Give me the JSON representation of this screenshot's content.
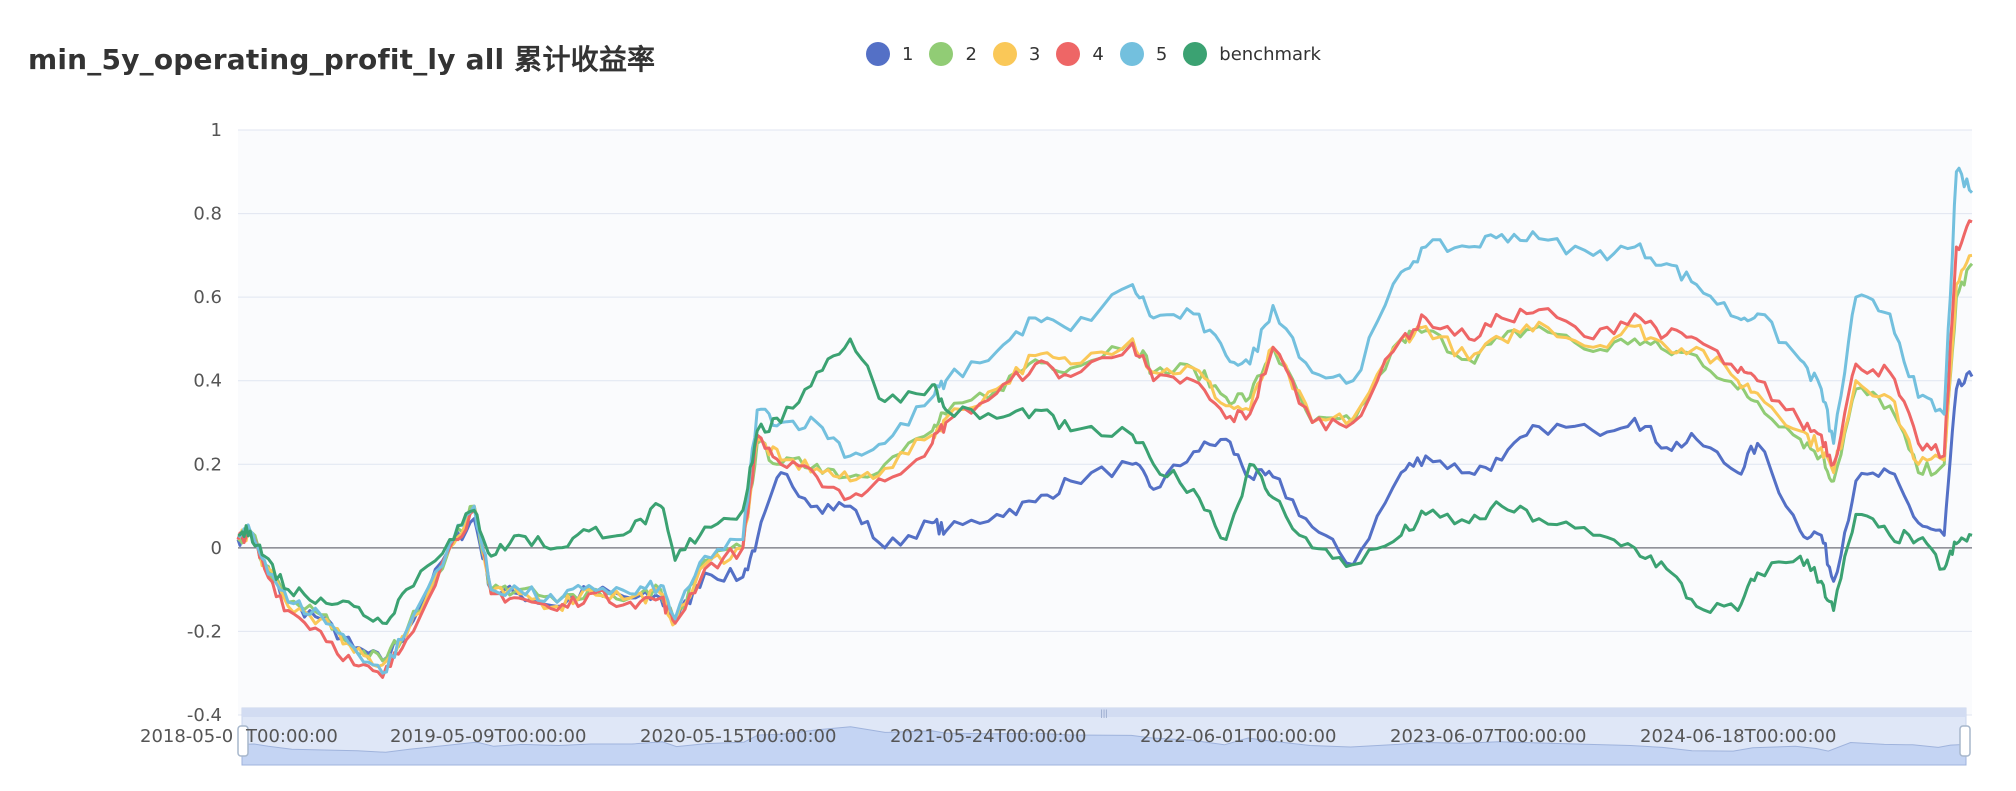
{
  "chart_data": {
    "type": "line",
    "title": "min_5y_operating_profit_ly all 累计收益率",
    "ylim": [
      -0.4,
      1
    ],
    "yticks": [
      "1",
      "0.8",
      "0.6",
      "0.4",
      "0.2",
      "0",
      "-0.2",
      "-0.4"
    ],
    "ytick_values": [
      1,
      0.8,
      0.6,
      0.4,
      0.2,
      0,
      -0.2,
      -0.4
    ],
    "x_start": "2018-05-02",
    "x_end": "2025-04-30",
    "xtick_labels": [
      "2018-05-0",
      "T00:00:00",
      "2019-05-09T00:00:00",
      "2020-05-15T00:00:00",
      "2021-05-24T00:00:00",
      "2022-06-01T00:00:00",
      "2023-06-07T00:00:00",
      "2024-06-18T00:00:00"
    ],
    "legend_position": "top-center",
    "grid": true,
    "series": [
      {
        "name": "1",
        "color": "#5470c6",
        "x": [
          "2018-05-02",
          "2018-05-20",
          "2018-06-10",
          "2018-07-15",
          "2018-09-01",
          "2018-10-20",
          "2018-12-01",
          "2019-01-05",
          "2019-03-10",
          "2019-04-15",
          "2019-05-10",
          "2019-06-20",
          "2019-08-15",
          "2019-10-01",
          "2019-12-01",
          "2020-01-15",
          "2020-02-05",
          "2020-03-20",
          "2020-05-15",
          "2020-06-05",
          "2020-07-10",
          "2020-09-01",
          "2020-10-20",
          "2020-12-10",
          "2021-02-18",
          "2021-03-10",
          "2021-05-24",
          "2021-07-20",
          "2021-09-10",
          "2021-12-10",
          "2022-01-10",
          "2022-03-10",
          "2022-04-27",
          "2022-06-01",
          "2022-07-05",
          "2022-09-01",
          "2022-10-31",
          "2023-01-10",
          "2023-02-15",
          "2023-04-20",
          "2023-06-07",
          "2023-08-01",
          "2023-10-20",
          "2023-12-20",
          "2024-02-05",
          "2024-03-20",
          "2024-05-20",
          "2024-06-18",
          "2024-08-20",
          "2024-09-20",
          "2024-10-08",
          "2024-11-10",
          "2024-12-30",
          "2025-02-10",
          "2025-03-20",
          "2025-04-07",
          "2025-04-30"
        ],
        "y": [
          0.02,
          0.04,
          -0.04,
          -0.13,
          -0.17,
          -0.24,
          -0.27,
          -0.2,
          0.0,
          0.07,
          -0.1,
          -0.11,
          -0.14,
          -0.1,
          -0.12,
          -0.12,
          -0.18,
          -0.06,
          -0.07,
          0.02,
          0.18,
          0.1,
          0.1,
          0.0,
          0.06,
          0.04,
          0.08,
          0.11,
          0.16,
          0.2,
          0.14,
          0.23,
          0.26,
          0.17,
          0.17,
          0.05,
          -0.04,
          0.18,
          0.22,
          0.18,
          0.21,
          0.29,
          0.28,
          0.31,
          0.24,
          0.26,
          0.18,
          0.25,
          0.04,
          0.03,
          -0.08,
          0.16,
          0.18,
          0.06,
          0.03,
          0.38,
          0.41
        ]
      },
      {
        "name": "2",
        "color": "#91cc75",
        "x": [
          "2018-05-02",
          "2018-05-20",
          "2018-06-10",
          "2018-07-15",
          "2018-09-01",
          "2018-10-20",
          "2018-12-01",
          "2019-01-05",
          "2019-03-10",
          "2019-04-15",
          "2019-05-10",
          "2019-06-20",
          "2019-08-15",
          "2019-10-01",
          "2019-12-01",
          "2020-01-15",
          "2020-02-05",
          "2020-03-20",
          "2020-05-15",
          "2020-06-05",
          "2020-07-10",
          "2020-09-01",
          "2020-10-20",
          "2020-12-10",
          "2021-02-18",
          "2021-03-10",
          "2021-05-24",
          "2021-07-20",
          "2021-09-10",
          "2021-12-10",
          "2022-01-10",
          "2022-03-10",
          "2022-04-27",
          "2022-06-01",
          "2022-07-05",
          "2022-09-01",
          "2022-10-31",
          "2023-01-10",
          "2023-02-15",
          "2023-04-20",
          "2023-06-07",
          "2023-08-01",
          "2023-10-20",
          "2023-12-20",
          "2024-02-05",
          "2024-03-20",
          "2024-05-20",
          "2024-06-18",
          "2024-08-20",
          "2024-09-20",
          "2024-10-08",
          "2024-11-10",
          "2024-12-30",
          "2025-02-10",
          "2025-03-20",
          "2025-04-07",
          "2025-04-30"
        ],
        "y": [
          0.02,
          0.04,
          -0.04,
          -0.13,
          -0.16,
          -0.24,
          -0.27,
          -0.2,
          0.0,
          0.1,
          -0.1,
          -0.1,
          -0.13,
          -0.1,
          -0.12,
          -0.1,
          -0.18,
          -0.03,
          0.0,
          0.25,
          0.2,
          0.2,
          0.17,
          0.2,
          0.28,
          0.32,
          0.38,
          0.45,
          0.43,
          0.5,
          0.42,
          0.43,
          0.36,
          0.36,
          0.48,
          0.3,
          0.3,
          0.5,
          0.52,
          0.45,
          0.5,
          0.53,
          0.47,
          0.5,
          0.47,
          0.46,
          0.38,
          0.35,
          0.26,
          0.22,
          0.16,
          0.38,
          0.34,
          0.18,
          0.2,
          0.6,
          0.68
        ]
      },
      {
        "name": "3",
        "color": "#fac858",
        "x": [
          "2018-05-02",
          "2018-05-20",
          "2018-06-10",
          "2018-07-15",
          "2018-09-01",
          "2018-10-20",
          "2018-12-01",
          "2019-01-05",
          "2019-03-10",
          "2019-04-15",
          "2019-05-10",
          "2019-06-20",
          "2019-08-15",
          "2019-10-01",
          "2019-12-01",
          "2020-01-15",
          "2020-02-05",
          "2020-03-20",
          "2020-05-15",
          "2020-06-05",
          "2020-07-10",
          "2020-09-01",
          "2020-10-20",
          "2020-12-10",
          "2021-02-18",
          "2021-03-10",
          "2021-05-24",
          "2021-07-20",
          "2021-09-10",
          "2021-12-10",
          "2022-01-10",
          "2022-03-10",
          "2022-04-27",
          "2022-06-01",
          "2022-07-05",
          "2022-09-01",
          "2022-10-31",
          "2023-01-10",
          "2023-02-15",
          "2023-04-20",
          "2023-06-07",
          "2023-08-01",
          "2023-10-20",
          "2023-12-20",
          "2024-02-05",
          "2024-03-20",
          "2024-05-20",
          "2024-06-18",
          "2024-08-20",
          "2024-09-20",
          "2024-10-08",
          "2024-11-10",
          "2024-12-30",
          "2025-02-10",
          "2025-03-20",
          "2025-04-07",
          "2025-04-30"
        ],
        "y": [
          0.02,
          0.04,
          -0.04,
          -0.14,
          -0.17,
          -0.25,
          -0.28,
          -0.21,
          0.0,
          0.1,
          -0.11,
          -0.11,
          -0.14,
          -0.1,
          -0.12,
          -0.11,
          -0.18,
          -0.04,
          0.0,
          0.26,
          0.21,
          0.19,
          0.16,
          0.19,
          0.27,
          0.31,
          0.38,
          0.46,
          0.44,
          0.5,
          0.42,
          0.43,
          0.34,
          0.33,
          0.48,
          0.3,
          0.31,
          0.5,
          0.53,
          0.45,
          0.5,
          0.54,
          0.48,
          0.53,
          0.48,
          0.48,
          0.4,
          0.37,
          0.28,
          0.24,
          0.18,
          0.4,
          0.36,
          0.2,
          0.21,
          0.63,
          0.7
        ]
      },
      {
        "name": "4",
        "color": "#ee6666",
        "x": [
          "2018-05-02",
          "2018-05-20",
          "2018-06-10",
          "2018-07-15",
          "2018-09-01",
          "2018-10-20",
          "2018-12-01",
          "2019-01-05",
          "2019-03-10",
          "2019-04-15",
          "2019-05-10",
          "2019-06-20",
          "2019-08-15",
          "2019-10-01",
          "2019-12-01",
          "2020-01-15",
          "2020-02-05",
          "2020-03-20",
          "2020-05-15",
          "2020-06-05",
          "2020-07-10",
          "2020-09-01",
          "2020-10-20",
          "2020-12-10",
          "2021-02-18",
          "2021-03-10",
          "2021-05-24",
          "2021-07-20",
          "2021-09-10",
          "2021-12-10",
          "2022-01-10",
          "2022-03-10",
          "2022-04-27",
          "2022-06-01",
          "2022-07-05",
          "2022-09-01",
          "2022-10-31",
          "2023-01-10",
          "2023-02-15",
          "2023-04-20",
          "2023-06-07",
          "2023-08-01",
          "2023-10-20",
          "2023-12-20",
          "2024-02-05",
          "2024-03-20",
          "2024-05-20",
          "2024-06-18",
          "2024-08-20",
          "2024-09-20",
          "2024-10-08",
          "2024-11-10",
          "2024-12-30",
          "2025-02-10",
          "2025-03-20",
          "2025-04-07",
          "2025-04-30"
        ],
        "y": [
          0.02,
          0.04,
          -0.05,
          -0.15,
          -0.2,
          -0.28,
          -0.31,
          -0.22,
          0.0,
          0.09,
          -0.11,
          -0.12,
          -0.15,
          -0.11,
          -0.13,
          -0.12,
          -0.18,
          -0.05,
          0.0,
          0.27,
          0.2,
          0.17,
          0.12,
          0.16,
          0.25,
          0.3,
          0.37,
          0.44,
          0.41,
          0.49,
          0.4,
          0.4,
          0.31,
          0.32,
          0.48,
          0.3,
          0.3,
          0.5,
          0.55,
          0.5,
          0.55,
          0.57,
          0.5,
          0.56,
          0.51,
          0.5,
          0.42,
          0.4,
          0.3,
          0.27,
          0.2,
          0.44,
          0.42,
          0.25,
          0.22,
          0.72,
          0.78
        ]
      },
      {
        "name": "5",
        "color": "#73c0de",
        "x": [
          "2018-05-02",
          "2018-05-20",
          "2018-06-10",
          "2018-07-15",
          "2018-09-01",
          "2018-10-20",
          "2018-12-01",
          "2019-01-05",
          "2019-03-10",
          "2019-04-15",
          "2019-05-10",
          "2019-06-20",
          "2019-08-15",
          "2019-10-01",
          "2019-12-01",
          "2020-01-15",
          "2020-02-05",
          "2020-03-20",
          "2020-05-15",
          "2020-06-05",
          "2020-07-10",
          "2020-09-01",
          "2020-10-20",
          "2020-12-10",
          "2021-02-18",
          "2021-03-10",
          "2021-05-24",
          "2021-07-20",
          "2021-09-10",
          "2021-12-10",
          "2022-01-10",
          "2022-03-10",
          "2022-04-27",
          "2022-06-01",
          "2022-07-05",
          "2022-09-01",
          "2022-10-31",
          "2023-01-10",
          "2023-02-15",
          "2023-04-20",
          "2023-06-07",
          "2023-08-01",
          "2023-10-20",
          "2023-12-20",
          "2024-02-05",
          "2024-03-20",
          "2024-05-20",
          "2024-06-18",
          "2024-08-20",
          "2024-09-20",
          "2024-10-08",
          "2024-11-10",
          "2024-12-30",
          "2025-02-10",
          "2025-03-20",
          "2025-04-07",
          "2025-04-30"
        ],
        "y": [
          0.03,
          0.04,
          -0.03,
          -0.13,
          -0.16,
          -0.24,
          -0.3,
          -0.2,
          0.01,
          0.1,
          -0.1,
          -0.1,
          -0.13,
          -0.09,
          -0.11,
          -0.09,
          -0.17,
          -0.02,
          0.02,
          0.33,
          0.3,
          0.3,
          0.22,
          0.25,
          0.36,
          0.4,
          0.47,
          0.55,
          0.52,
          0.63,
          0.55,
          0.56,
          0.46,
          0.44,
          0.58,
          0.42,
          0.4,
          0.66,
          0.72,
          0.72,
          0.75,
          0.74,
          0.7,
          0.72,
          0.68,
          0.63,
          0.55,
          0.56,
          0.45,
          0.38,
          0.25,
          0.6,
          0.56,
          0.36,
          0.32,
          0.9,
          0.85
        ]
      },
      {
        "name": "benchmark",
        "color": "#3ba272",
        "x": [
          "2018-05-02",
          "2018-05-20",
          "2018-06-10",
          "2018-07-15",
          "2018-09-01",
          "2018-10-20",
          "2018-12-01",
          "2019-01-05",
          "2019-03-10",
          "2019-04-15",
          "2019-05-10",
          "2019-06-20",
          "2019-08-15",
          "2019-10-01",
          "2019-12-01",
          "2020-01-15",
          "2020-02-05",
          "2020-03-20",
          "2020-05-15",
          "2020-06-05",
          "2020-07-10",
          "2020-09-01",
          "2020-10-20",
          "2020-12-10",
          "2021-02-18",
          "2021-03-10",
          "2021-05-24",
          "2021-07-20",
          "2021-09-10",
          "2021-12-10",
          "2022-01-10",
          "2022-03-10",
          "2022-04-27",
          "2022-06-01",
          "2022-07-05",
          "2022-09-01",
          "2022-10-31",
          "2023-01-10",
          "2023-02-15",
          "2023-04-20",
          "2023-06-07",
          "2023-08-01",
          "2023-10-20",
          "2023-12-20",
          "2024-02-05",
          "2024-03-20",
          "2024-05-20",
          "2024-06-18",
          "2024-08-20",
          "2024-09-20",
          "2024-10-08",
          "2024-11-10",
          "2024-12-30",
          "2025-02-10",
          "2025-03-20",
          "2025-04-07",
          "2025-04-30"
        ],
        "y": [
          0.03,
          0.04,
          -0.02,
          -0.1,
          -0.12,
          -0.14,
          -0.18,
          -0.1,
          0.02,
          0.09,
          -0.02,
          0.03,
          0.0,
          0.04,
          0.04,
          0.1,
          -0.03,
          0.05,
          0.09,
          0.28,
          0.3,
          0.42,
          0.5,
          0.35,
          0.39,
          0.33,
          0.31,
          0.33,
          0.28,
          0.27,
          0.2,
          0.14,
          0.02,
          0.2,
          0.12,
          0.0,
          -0.04,
          0.03,
          0.08,
          0.06,
          0.1,
          0.07,
          0.03,
          0.0,
          -0.05,
          -0.14,
          -0.15,
          -0.06,
          -0.02,
          -0.08,
          -0.15,
          0.08,
          0.03,
          0.02,
          -0.05,
          0.01,
          0.03
        ]
      }
    ]
  }
}
